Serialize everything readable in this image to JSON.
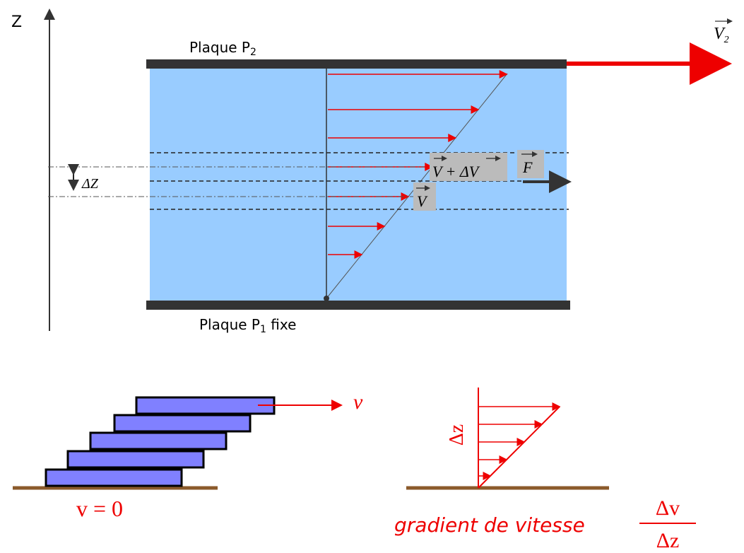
{
  "top_diagram": {
    "axis_label": "Z",
    "plate_top": {
      "text": "Plaque P",
      "sub": "2"
    },
    "plate_bottom": {
      "text": "Plaque P",
      "sub": "1",
      "suffix": " fixe"
    },
    "moving_velocity": {
      "text": "V",
      "sub": "2"
    },
    "layer_thickness": "ΔZ",
    "upper_velocity": "V + ΔV",
    "force": "F",
    "lower_velocity": "V"
  },
  "bottom_left": {
    "velocity": "v",
    "rest": "v = 0"
  },
  "bottom_right": {
    "height": "Δz",
    "caption": "gradient de vitesse",
    "numerator": "Δv",
    "denominator": "Δz"
  }
}
